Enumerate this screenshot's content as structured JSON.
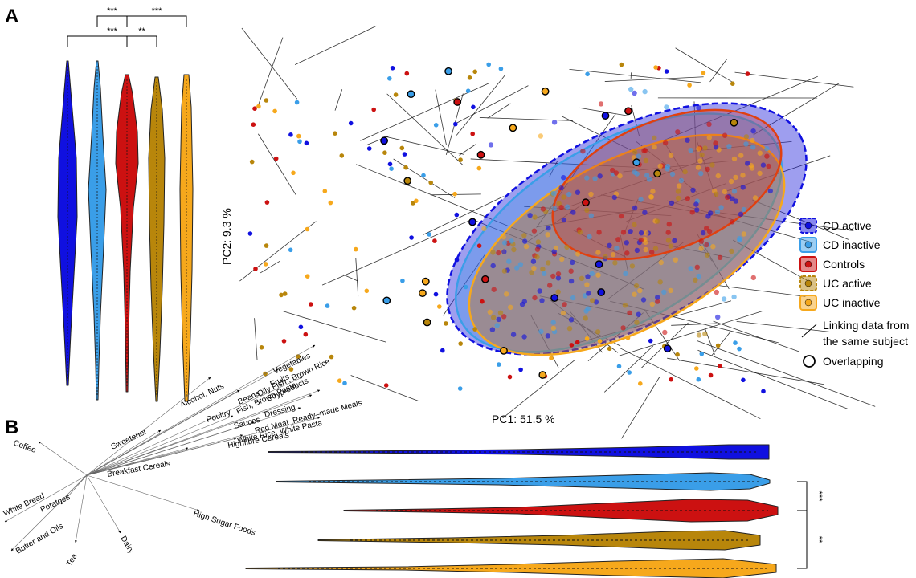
{
  "panel_a_label": "A",
  "panel_b_label": "B",
  "groups": [
    {
      "name": "CD active",
      "color": "#1010e0"
    },
    {
      "name": "CD inactive",
      "color": "#3a9ee8"
    },
    {
      "name": "Controls",
      "color": "#cc1111"
    },
    {
      "name": "UC active",
      "color": "#b8860b"
    },
    {
      "name": "UC inactive",
      "color": "#f6a81c"
    }
  ],
  "legend_extra": {
    "linking_label": [
      "Linking data from",
      "the same subject"
    ],
    "overlap_label": "Overlapping"
  },
  "chart_data": [
    {
      "type": "violin",
      "panel": "A (left)",
      "orientation": "vertical",
      "series": [
        "CD active",
        "CD inactive",
        "Controls",
        "UC active",
        "UC inactive"
      ],
      "significance": [
        {
          "between": [
            "CD active",
            "UC active"
          ],
          "label": "***"
        },
        {
          "between": [
            "CD inactive",
            "Controls"
          ],
          "label": "***"
        },
        {
          "between": [
            "Controls",
            "UC active"
          ],
          "label": "**"
        },
        {
          "between": [
            "Controls",
            "UC inactive"
          ],
          "label": "***"
        }
      ]
    },
    {
      "type": "scatter",
      "panel": "A (right)",
      "xlabel": "PC1: 51.5  %",
      "ylabel": "PC2: 9.3  %",
      "series": [
        "CD active",
        "CD inactive",
        "Controls",
        "UC active",
        "UC inactive"
      ],
      "ellipses": [
        "CD active",
        "CD inactive",
        "Controls",
        "UC active",
        "UC inactive"
      ],
      "legend_position": "right"
    },
    {
      "type": "biplot",
      "panel": "B (left)",
      "loadings": [
        "Vegetables",
        "Fruits",
        "Oily Fish , Brown Rice",
        "Beans",
        "Alcohol, Nuts",
        "Soyproducts",
        "Fish, Brown Pasta",
        "Dressing",
        "Poultry",
        "Sauces",
        "Red Meat ,Ready–made Meals",
        "White Rice, White Pasta",
        "Highfibre Cereals",
        "Sweetener",
        "Breakfast Cereals",
        "Coffee",
        "White Bread",
        "Potatoes",
        "Butter and Oils",
        "Tea",
        "Dairy",
        "High Sugar Foods"
      ]
    },
    {
      "type": "violin",
      "panel": "B (right)",
      "orientation": "horizontal",
      "series": [
        "CD active",
        "CD inactive",
        "Controls",
        "UC active",
        "UC inactive"
      ],
      "significance": [
        {
          "between": [
            "CD inactive",
            "Controls"
          ],
          "label": "***"
        },
        {
          "between": [
            "Controls",
            "UC inactive"
          ],
          "label": "**"
        }
      ]
    }
  ]
}
